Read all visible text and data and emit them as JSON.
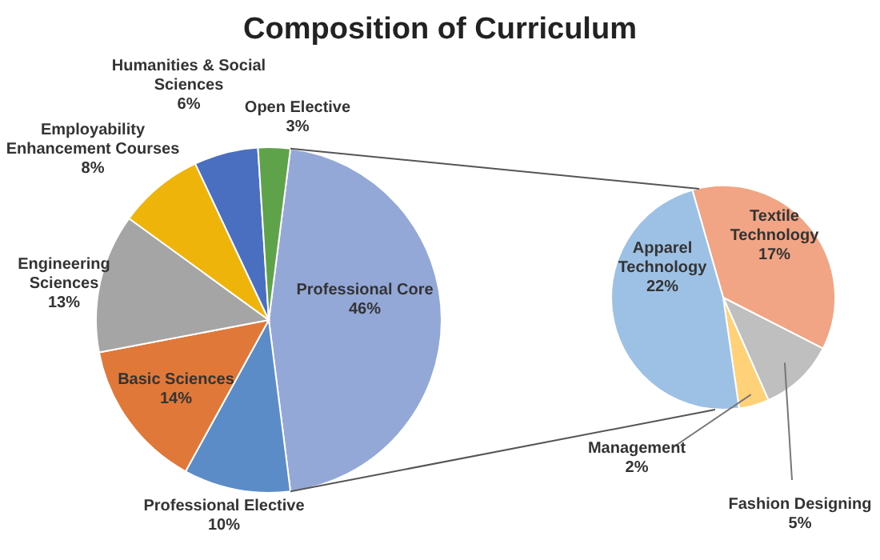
{
  "chart_data": [
    {
      "type": "pie",
      "title": "Composition of Curriculum",
      "categories": [
        "Professional Core",
        "Professional Elective",
        "Basic Sciences",
        "Engineering Sciences",
        "Employability Enhancement Courses",
        "Humanities & Social Sciences",
        "Open Elective"
      ],
      "values": [
        46,
        10,
        14,
        13,
        8,
        6,
        3
      ],
      "colors": [
        "#94a8d8",
        "#5b8cc8",
        "#e0783a",
        "#a5a5a5",
        "#efb40a",
        "#4a6fc0",
        "#5ea24a"
      ],
      "value_labels": [
        "46%",
        "10%",
        "14%",
        "13%",
        "8%",
        "6%",
        "3%"
      ]
    },
    {
      "type": "pie",
      "categories": [
        "Textile Technology",
        "Fashion Designing",
        "Management",
        "Apparel Technology"
      ],
      "values": [
        17,
        5,
        2,
        22
      ],
      "colors": [
        "#f2a585",
        "#bfbfbf",
        "#ffd27a",
        "#9dc1e5"
      ],
      "value_labels": [
        "17%",
        "5%",
        "2%",
        "22%"
      ]
    }
  ]
}
